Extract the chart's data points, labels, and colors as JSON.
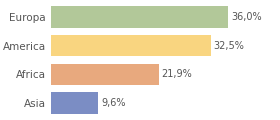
{
  "categories": [
    "Europa",
    "America",
    "Africa",
    "Asia"
  ],
  "values": [
    36.0,
    32.5,
    21.9,
    9.6
  ],
  "labels": [
    "36,0%",
    "32,5%",
    "21,9%",
    "9,6%"
  ],
  "bar_colors": [
    "#b2c899",
    "#f9d580",
    "#e8a97e",
    "#7b8dc4"
  ],
  "background_color": "#ffffff",
  "xlim": [
    0,
    46
  ],
  "bar_height": 0.75
}
